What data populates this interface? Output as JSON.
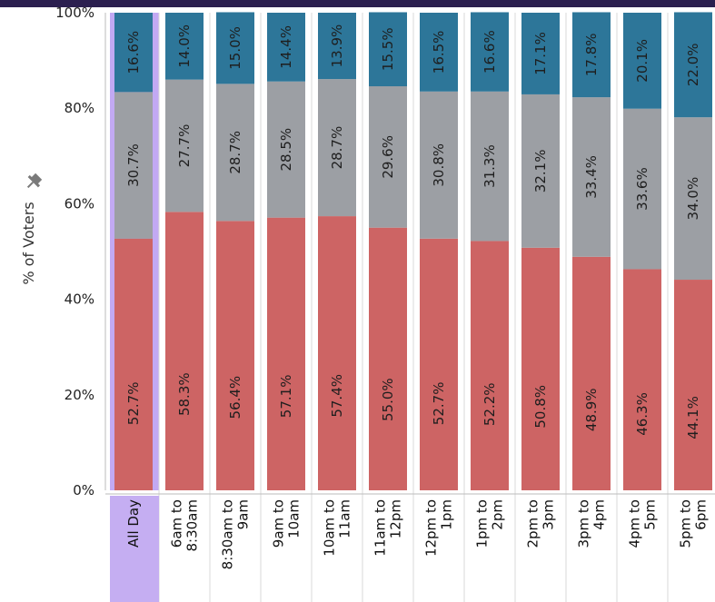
{
  "chart_data": {
    "type": "bar",
    "stacked": true,
    "orientation": "vertical",
    "title": "",
    "xlabel": "",
    "ylabel": "% of Voters",
    "ylim": [
      0,
      100
    ],
    "y_ticks": [
      "0%",
      "20%",
      "40%",
      "60%",
      "80%",
      "100%"
    ],
    "grid": false,
    "legend": "none",
    "highlighted_category": "All Day",
    "categories": [
      [
        "All Day"
      ],
      [
        "6am to",
        "8:30am"
      ],
      [
        "8:30am to",
        "9am"
      ],
      [
        "9am to",
        "10am"
      ],
      [
        "10am to",
        "11am"
      ],
      [
        "11am to",
        "12pm"
      ],
      [
        "12pm to",
        "1pm"
      ],
      [
        "1pm to",
        "2pm"
      ],
      [
        "2pm to",
        "3pm"
      ],
      [
        "3pm to",
        "4pm"
      ],
      [
        "4pm to",
        "5pm"
      ],
      [
        "5pm to",
        "6pm"
      ]
    ],
    "series": [
      {
        "color": "#cd6464",
        "values": [
          52.7,
          58.3,
          56.4,
          57.1,
          57.4,
          55.0,
          52.7,
          52.2,
          50.8,
          48.9,
          46.3,
          44.1
        ],
        "labels": [
          "52.7%",
          "58.3%",
          "56.4%",
          "57.1%",
          "57.4%",
          "55.0%",
          "52.7%",
          "52.2%",
          "50.8%",
          "48.9%",
          "46.3%",
          "44.1%"
        ]
      },
      {
        "color": "#9c9fa4",
        "values": [
          30.7,
          27.7,
          28.7,
          28.5,
          28.7,
          29.6,
          30.8,
          31.3,
          32.1,
          33.4,
          33.6,
          34.0
        ],
        "labels": [
          "30.7%",
          "27.7%",
          "28.7%",
          "28.5%",
          "28.7%",
          "29.6%",
          "30.8%",
          "31.3%",
          "32.1%",
          "33.4%",
          "33.6%",
          "34.0%"
        ]
      },
      {
        "color": "#2d7699",
        "values": [
          16.6,
          14.0,
          15.0,
          14.4,
          13.9,
          15.5,
          16.5,
          16.6,
          17.1,
          17.8,
          20.1,
          22.0
        ],
        "labels": [
          "16.6%",
          "14.0%",
          "15.0%",
          "14.4%",
          "13.9%",
          "15.5%",
          "16.5%",
          "16.6%",
          "17.1%",
          "17.8%",
          "20.1%",
          "22.0%"
        ]
      }
    ]
  },
  "colors": {
    "header_bar": "#2b1f4f",
    "highlight_band": "#c2a9f3",
    "highlight_label_bg": "#c5aef2",
    "axis_line": "#bbbbbb",
    "divider": "#d9d9d9",
    "pin_icon": "#7a7a7a"
  }
}
